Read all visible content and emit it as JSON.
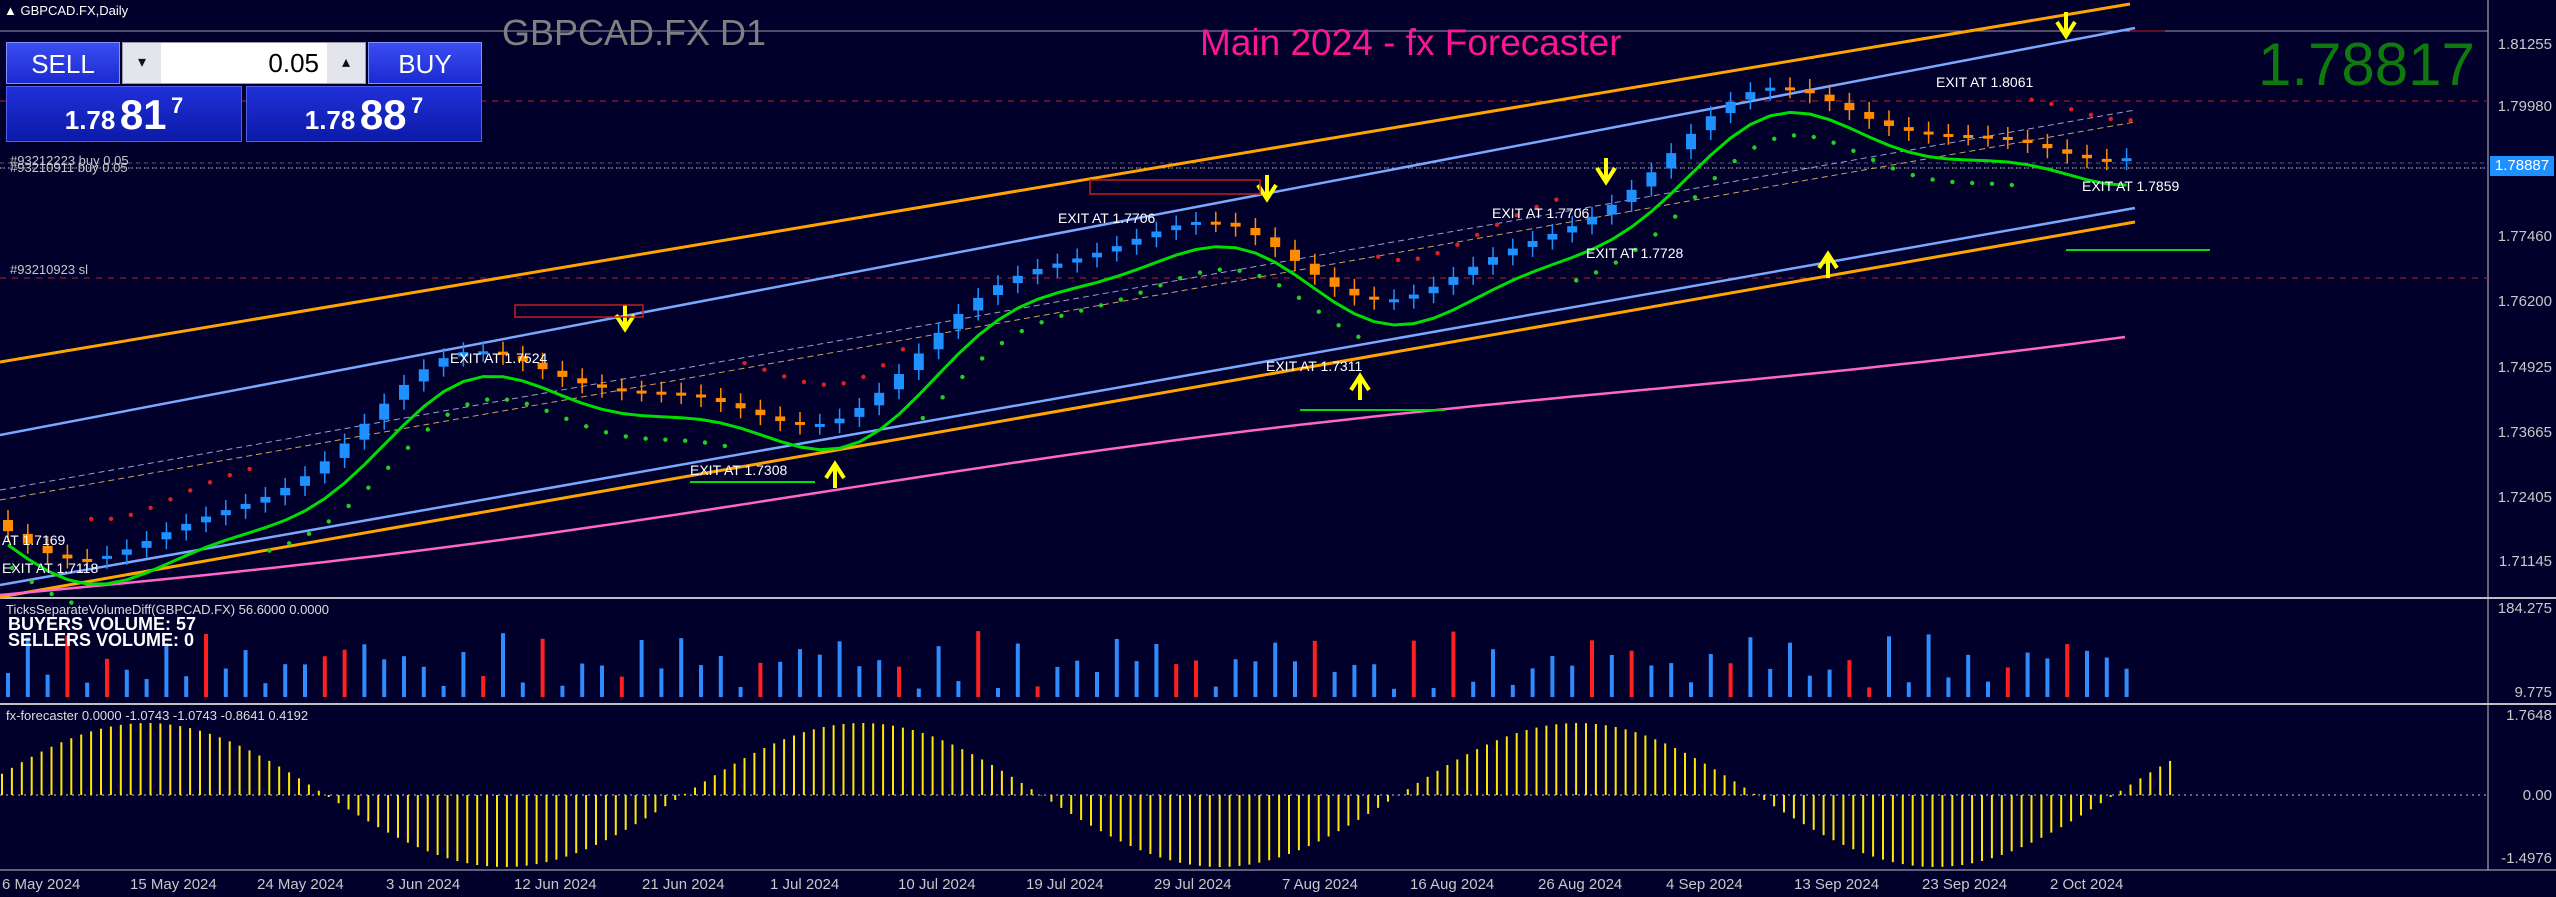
{
  "window": {
    "title": "GBPCAD.FX,Daily",
    "symbol_header": "GBPCAD.FX D1",
    "indicator_title": "Main 2024 - fx Forecaster",
    "live_price": "1.78817"
  },
  "trade_panel": {
    "sell_label": "SELL",
    "buy_label": "BUY",
    "lot_value": "0.05",
    "sell_price": {
      "prefix": "1.78",
      "big": "81",
      "sup": "7"
    },
    "buy_price": {
      "prefix": "1.78",
      "big": "88",
      "sup": "7"
    }
  },
  "orders": {
    "buy_order_1": "#93212223 buy 0.05",
    "buy_order_2": "#93210911 buy 0.05",
    "sl_label": "#93210923 sl"
  },
  "price_axis": {
    "labels": [
      "1.81255",
      "1.79980",
      "1.77460",
      "1.76200",
      "1.74925",
      "1.73665",
      "1.72405",
      "1.71145"
    ],
    "current_price_tag": "1.78887"
  },
  "date_axis": {
    "labels": [
      "6 May 2024",
      "15 May 2024",
      "24 May 2024",
      "3 Jun 2024",
      "12 Jun 2024",
      "21 Jun 2024",
      "1 Jul 2024",
      "10 Jul 2024",
      "19 Jul 2024",
      "29 Jul 2024",
      "7 Aug 2024",
      "16 Aug 2024",
      "26 Aug 2024",
      "4 Sep 2024",
      "13 Sep 2024",
      "23 Sep 2024",
      "2 Oct 2024"
    ]
  },
  "exit_labels": [
    "AT 1.7169",
    "EXIT AT 1.7118",
    "EXIT AT 1.7524",
    "EXIT AT 1.7308",
    "EXIT AT 1.7706",
    "EXIT AT 1.7311",
    "EXIT AT 1.7706",
    "EXIT AT 1.7728",
    "EXIT AT 1.8061",
    "EXIT AT 1.7859"
  ],
  "volume_panel": {
    "title": "TicksSeparateVolumeDiff(GBPCAD.FX) 56.6000 0.0000",
    "buyers": "BUYERS VOLUME: 57",
    "sellers": "SELLERS VOLUME: 0",
    "axis_top": "184.275",
    "axis_bottom": "9.775"
  },
  "forecaster_panel": {
    "title": "fx-forecaster 0.0000 -1.0743 -1.0743 -0.8641 0.4192",
    "axis_top": "1.7648",
    "axis_mid": "0.00",
    "axis_bottom": "-1.4976"
  },
  "colors": {
    "background": "#01002b",
    "bull_candle": "#1e90ff",
    "bear_candle": "#ff8c00",
    "channel_outer": "#ffa500",
    "channel_inner": "#7aa8ff",
    "ma_pink": "#ff66cc",
    "trend_green": "#00dd00",
    "histogram": "#ffe800",
    "title_pink": "#ff1493",
    "live_price_green": "#0e7a0e"
  }
}
